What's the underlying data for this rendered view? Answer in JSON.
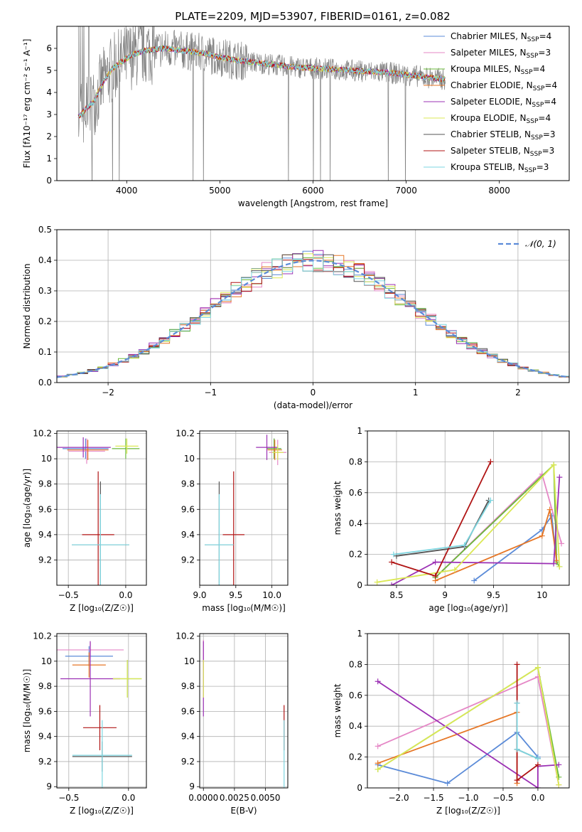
{
  "title": "PLATE=2209, MJD=53907, FIBERID=0161, z=0.082",
  "models": [
    {
      "name": "Chabrier MILES",
      "nssp": "4",
      "color": "#5b8bd8"
    },
    {
      "name": "Salpeter MILES",
      "nssp": "3",
      "color": "#e587c6"
    },
    {
      "name": "Kroupa MILES",
      "nssp": "4",
      "color": "#6bb93b"
    },
    {
      "name": "Chabrier ELODIE",
      "nssp": "4",
      "color": "#e67625"
    },
    {
      "name": "Salpeter ELODIE",
      "nssp": "4",
      "color": "#9b30b4"
    },
    {
      "name": "Kroupa ELODIE",
      "nssp": "4",
      "color": "#dbe855"
    },
    {
      "name": "Chabrier STELIB",
      "nssp": "3",
      "color": "#555555"
    },
    {
      "name": "Salpeter STELIB",
      "nssp": "3",
      "color": "#b01414"
    },
    {
      "name": "Kroupa STELIB",
      "nssp": "3",
      "color": "#7dd6e0"
    }
  ],
  "chart_data": [
    {
      "id": "spectrum",
      "type": "line",
      "xlabel": "wavelength [Angstrom, rest frame]",
      "ylabel": "Flux [fλ10⁻¹⁷ erg cm⁻² s⁻¹ A⁻¹]",
      "xlim": [
        3250,
        8750
      ],
      "ylim": [
        0,
        7
      ],
      "xticks": [
        4000,
        5000,
        6000,
        7000,
        8000
      ],
      "yticks": [
        0,
        1,
        2,
        3,
        4,
        5,
        6
      ],
      "data_note": "observed spectrum (grey) with nine model fits overlaid",
      "continuum": {
        "x": [
          3480,
          3550,
          3650,
          3750,
          3850,
          3950,
          4050,
          4200,
          4400,
          4600,
          4800,
          5000,
          5200,
          5400,
          5600,
          5800,
          6000,
          6200,
          6400,
          6600,
          6800,
          7000,
          7200,
          7400
        ],
        "y": [
          2.9,
          3.2,
          3.6,
          4.5,
          5.1,
          5.4,
          5.7,
          5.9,
          6.0,
          5.9,
          5.8,
          5.6,
          5.45,
          5.35,
          5.25,
          5.15,
          5.1,
          5.05,
          5.0,
          4.95,
          4.9,
          4.8,
          4.7,
          4.6
        ]
      }
    },
    {
      "id": "residuals",
      "type": "line",
      "xlabel": "(data-model)/error",
      "ylabel": "Normed distribution",
      "xlim": [
        -2.5,
        2.5
      ],
      "ylim": [
        0,
        0.5
      ],
      "xticks": [
        -2,
        -1,
        0,
        1,
        2
      ],
      "yticks": [
        0.0,
        0.1,
        0.2,
        0.3,
        0.4,
        0.5
      ],
      "xtick_labels": [
        "−2",
        "−1",
        "0",
        "1",
        "2"
      ],
      "ytick_labels": [
        "0.0",
        "0.1",
        "0.2",
        "0.3",
        "0.4",
        "0.5"
      ],
      "legend": "𝒩(0, 1)",
      "legend_position": "top-right",
      "grid": true
    },
    {
      "id": "z-age",
      "type": "scatter",
      "xlabel": "Z [log₁₀(Z/Z☉)]",
      "ylabel": "age  [log₁₀(age/yr)]",
      "xlim": [
        -0.6,
        0.18
      ],
      "ylim": [
        9.0,
        10.22
      ],
      "xticks": [
        -0.5,
        0.0
      ],
      "xtick_labels": [
        "−0.5",
        "0.0"
      ],
      "yticks": [
        9.2,
        9.4,
        9.6,
        9.8,
        10.0,
        10.2
      ],
      "points": [
        {
          "m": 0,
          "x": -0.35,
          "y": 10.08,
          "xerr": 0.2,
          "yerr": 0.08
        },
        {
          "m": 1,
          "x": -0.34,
          "y": 10.06,
          "xerr": 0.16,
          "yerr": 0.1
        },
        {
          "m": 2,
          "x": 0.0,
          "y": 10.08,
          "xerr": 0.12,
          "yerr": 0.08
        },
        {
          "m": 3,
          "x": -0.33,
          "y": 10.07,
          "xerr": 0.18,
          "yerr": 0.08
        },
        {
          "m": 4,
          "x": -0.37,
          "y": 10.09,
          "xerr": 0.24,
          "yerr": 0.08
        },
        {
          "m": 5,
          "x": 0.01,
          "y": 10.1,
          "xerr": 0.1,
          "yerr": 0.06
        },
        {
          "m": 6,
          "x": -0.22,
          "y": 9.32,
          "xerr": 0.25,
          "yerr": 0.5
        },
        {
          "m": 7,
          "x": -0.24,
          "y": 9.4,
          "xerr": 0.14,
          "yerr": 0.5
        },
        {
          "m": 8,
          "x": -0.22,
          "y": 9.32,
          "xerr": 0.25,
          "yerr": 0.4
        }
      ]
    },
    {
      "id": "mass-age",
      "type": "scatter",
      "xlabel": "mass [log₁₀(M/M☉)]",
      "ylabel": "",
      "xlim": [
        9.0,
        10.22
      ],
      "ylim": [
        9.0,
        10.22
      ],
      "xticks": [
        9.0,
        9.5,
        10.0
      ],
      "xtick_labels": [
        "9.0",
        "9.5",
        "10.0"
      ],
      "yticks": [
        9.2,
        9.4,
        9.6,
        9.8,
        10.0,
        10.2
      ],
      "points": [
        {
          "m": 0,
          "x": 10.03,
          "y": 10.08,
          "xerr": 0.1,
          "yerr": 0.08
        },
        {
          "m": 1,
          "x": 10.08,
          "y": 10.05,
          "xerr": 0.12,
          "yerr": 0.1
        },
        {
          "m": 2,
          "x": 10.03,
          "y": 10.08,
          "xerr": 0.1,
          "yerr": 0.08
        },
        {
          "m": 3,
          "x": 10.04,
          "y": 10.07,
          "xerr": 0.1,
          "yerr": 0.08
        },
        {
          "m": 4,
          "x": 9.93,
          "y": 10.09,
          "xerr": 0.15,
          "yerr": 0.1
        },
        {
          "m": 5,
          "x": 10.08,
          "y": 10.05,
          "xerr": 0.08,
          "yerr": 0.06
        },
        {
          "m": 6,
          "x": 9.27,
          "y": 9.32,
          "xerr": 0.2,
          "yerr": 0.5
        },
        {
          "m": 7,
          "x": 9.47,
          "y": 9.4,
          "xerr": 0.15,
          "yerr": 0.5
        },
        {
          "m": 8,
          "x": 9.27,
          "y": 9.32,
          "xerr": 0.2,
          "yerr": 0.4
        }
      ]
    },
    {
      "id": "age-weight",
      "type": "line",
      "xlabel": "age  [log₁₀(age/yr)]",
      "ylabel": "mass weight",
      "xlim": [
        8.2,
        10.28
      ],
      "ylim": [
        0.0,
        1.0
      ],
      "xticks": [
        8.5,
        9.0,
        9.5,
        10.0
      ],
      "yticks": [
        0.0,
        0.2,
        0.4,
        0.6,
        0.8,
        1.0
      ],
      "grid": true,
      "lines": [
        {
          "m": 0,
          "x": [
            9.3,
            10.0,
            10.1,
            10.15
          ],
          "y": [
            0.03,
            0.36,
            0.45,
            0.15
          ]
        },
        {
          "m": 1,
          "x": [
            8.9,
            10.0,
            10.2
          ],
          "y": [
            0.05,
            0.72,
            0.27
          ]
        },
        {
          "m": 2,
          "x": [
            8.9,
            10.12,
            10.15,
            10.18
          ],
          "y": [
            0.05,
            0.78,
            0.15,
            0.12
          ]
        },
        {
          "m": 3,
          "x": [
            8.9,
            10.0,
            10.08,
            10.15
          ],
          "y": [
            0.03,
            0.32,
            0.49,
            0.16
          ]
        },
        {
          "m": 4,
          "x": [
            8.45,
            8.9,
            10.12,
            10.18
          ],
          "y": [
            0.0,
            0.15,
            0.14,
            0.7
          ]
        },
        {
          "m": 5,
          "x": [
            8.3,
            9.1,
            10.12,
            10.18
          ],
          "y": [
            0.02,
            0.1,
            0.78,
            0.12
          ]
        },
        {
          "m": 6,
          "x": [
            8.5,
            9.2,
            9.45
          ],
          "y": [
            0.19,
            0.25,
            0.55
          ]
        },
        {
          "m": 7,
          "x": [
            8.45,
            8.9,
            9.47
          ],
          "y": [
            0.15,
            0.06,
            0.8
          ]
        },
        {
          "m": 8,
          "x": [
            8.47,
            9.2,
            9.47
          ],
          "y": [
            0.2,
            0.26,
            0.55
          ]
        }
      ]
    },
    {
      "id": "z-mass",
      "type": "scatter",
      "xlabel": "Z [log₁₀(Z/Z☉)]",
      "ylabel": "mass [log₁₀(M/M☉)]",
      "xlim": [
        -0.6,
        0.15
      ],
      "ylim": [
        8.99,
        10.22
      ],
      "xticks": [
        -0.5,
        0.0
      ],
      "xtick_labels": [
        "−0.5",
        "0.0"
      ],
      "yticks": [
        9.0,
        9.2,
        9.4,
        9.6,
        9.8,
        10.0,
        10.2
      ],
      "points": [
        {
          "m": 0,
          "x": -0.33,
          "y": 10.04,
          "xerr": 0.2,
          "yerr": 0.08
        },
        {
          "m": 1,
          "x": -0.32,
          "y": 10.09,
          "xerr": 0.28,
          "yerr": 0.06
        },
        {
          "m": 2,
          "x": -0.01,
          "y": 9.86,
          "xerr": 0.12,
          "yerr": 0.15
        },
        {
          "m": 3,
          "x": -0.33,
          "y": 9.97,
          "xerr": 0.14,
          "yerr": 0.1
        },
        {
          "m": 4,
          "x": -0.32,
          "y": 9.86,
          "xerr": 0.25,
          "yerr": 0.3
        },
        {
          "m": 5,
          "x": -0.01,
          "y": 9.86,
          "xerr": 0.12,
          "yerr": 0.15
        },
        {
          "m": 6,
          "x": -0.22,
          "y": 9.24,
          "xerr": 0.25,
          "yerr": 0.12
        },
        {
          "m": 7,
          "x": -0.24,
          "y": 9.47,
          "xerr": 0.14,
          "yerr": 0.18
        },
        {
          "m": 8,
          "x": -0.22,
          "y": 9.25,
          "xerr": 0.25,
          "yerr": 0.28
        }
      ]
    },
    {
      "id": "ebv-mass",
      "type": "scatter",
      "xlabel": "E(B-V)",
      "ylabel": "",
      "xlim": [
        -0.0003,
        0.0068
      ],
      "ylim": [
        8.99,
        10.22
      ],
      "xticks": [
        0.0,
        0.0025,
        0.005
      ],
      "xtick_labels": [
        "0.0000",
        "0.0025",
        "0.0050"
      ],
      "yticks": [
        9.0,
        9.2,
        9.4,
        9.6,
        9.8,
        10.0,
        10.2
      ],
      "points": [
        {
          "m": 1,
          "x": 0.0,
          "y": 10.05,
          "xerr": 0.0,
          "yerr": 0.12
        },
        {
          "m": 4,
          "x": 0.0,
          "y": 9.86,
          "xerr": 0.0,
          "yerr": 0.3
        },
        {
          "m": 5,
          "x": 0.0,
          "y": 9.86,
          "xerr": 0.0,
          "yerr": 0.15
        },
        {
          "m": 7,
          "x": 0.0065,
          "y": 9.47,
          "xerr": 0.0,
          "yerr": 0.18
        },
        {
          "m": 8,
          "x": 0.0065,
          "y": 9.25,
          "xerr": 0.0,
          "yerr": 0.28
        }
      ]
    },
    {
      "id": "z-weight",
      "type": "line",
      "xlabel": "Z [log₁₀(Z/Z☉)]",
      "ylabel": "mass weight",
      "xlim": [
        -2.45,
        0.45
      ],
      "ylim": [
        0.0,
        1.0
      ],
      "xticks": [
        -2.0,
        -1.5,
        -1.0,
        -0.5,
        0.0
      ],
      "xtick_labels": [
        "−2.0",
        "−1.5",
        "−1.0",
        "−0.5",
        "0.0"
      ],
      "yticks": [
        0.0,
        0.2,
        0.4,
        0.6,
        0.8,
        1.0
      ],
      "grid": true,
      "lines": [
        {
          "m": 0,
          "x": [
            -2.3,
            -1.3,
            -0.3,
            0.0
          ],
          "y": [
            0.15,
            0.03,
            0.36,
            0.2
          ]
        },
        {
          "m": 1,
          "x": [
            -2.3,
            0.0,
            0.3
          ],
          "y": [
            0.27,
            0.72,
            0.02
          ]
        },
        {
          "m": 2,
          "x": [
            -2.3,
            0.0,
            0.3
          ],
          "y": [
            0.12,
            0.78,
            0.07
          ]
        },
        {
          "m": 3,
          "x": [
            -2.3,
            -0.3,
            -0.3
          ],
          "y": [
            0.16,
            0.49,
            0.03
          ]
        },
        {
          "m": 4,
          "x": [
            -2.3,
            0.0,
            0.0,
            0.3
          ],
          "y": [
            0.69,
            0.0,
            0.14,
            0.15
          ]
        },
        {
          "m": 5,
          "x": [
            -2.3,
            0.0,
            0.3
          ],
          "y": [
            0.12,
            0.78,
            0.02
          ]
        },
        {
          "m": 6,
          "x": [
            -0.3,
            -0.3,
            0.0
          ],
          "y": [
            0.55,
            0.25,
            0.19
          ]
        },
        {
          "m": 7,
          "x": [
            -0.3,
            -0.3,
            0.0
          ],
          "y": [
            0.8,
            0.05,
            0.15
          ]
        },
        {
          "m": 8,
          "x": [
            -0.3,
            -0.3,
            0.0
          ],
          "y": [
            0.55,
            0.25,
            0.19
          ]
        }
      ]
    }
  ]
}
